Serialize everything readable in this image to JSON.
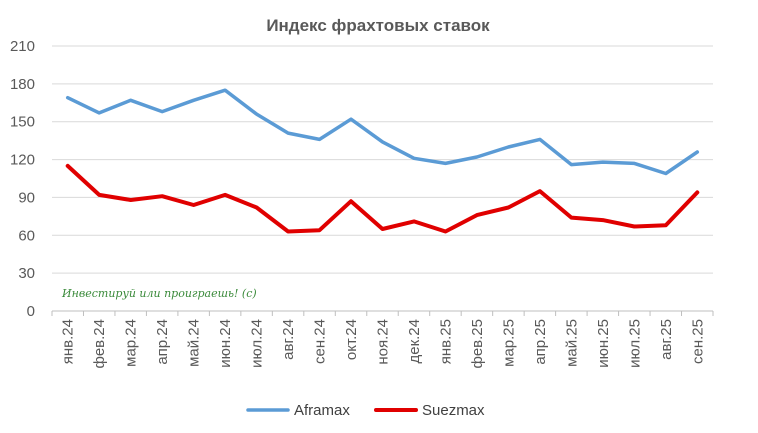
{
  "chart_data": {
    "type": "line",
    "title": "Индекс фрахтовых ставок",
    "categories": [
      "янв.24",
      "фев.24",
      "мар.24",
      "апр.24",
      "май.24",
      "июн.24",
      "июл.24",
      "авг.24",
      "сен.24",
      "окт.24",
      "ноя.24",
      "дек.24",
      "янв.25",
      "фев.25",
      "мар.25",
      "апр.25",
      "май.25",
      "июн.25",
      "июл.25",
      "авг.25",
      "сен.25"
    ],
    "ylim": [
      0,
      210
    ],
    "yticks": [
      0,
      30,
      60,
      90,
      120,
      150,
      180,
      210
    ],
    "grid": true,
    "legend_position": "bottom",
    "series": [
      {
        "name": "Aframax",
        "color": "#5b9bd5",
        "values": [
          169,
          157,
          167,
          158,
          167,
          175,
          156,
          141,
          136,
          152,
          134,
          121,
          117,
          122,
          130,
          136,
          116,
          118,
          117,
          109,
          126
        ]
      },
      {
        "name": "Suezmax",
        "color": "#e00000",
        "values": [
          115,
          92,
          88,
          91,
          84,
          92,
          82,
          63,
          64,
          87,
          65,
          71,
          63,
          76,
          82,
          95,
          74,
          72,
          67,
          68,
          94
        ]
      }
    ],
    "annotation": "Инвестируй или проиграешь! (с)"
  }
}
